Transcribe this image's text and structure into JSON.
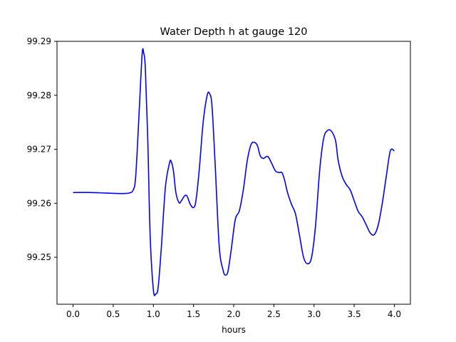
{
  "chart_data": {
    "type": "line",
    "title": "Water Depth h at gauge 120",
    "xlabel": "hours",
    "ylabel": "",
    "xlim": [
      -0.2,
      4.2
    ],
    "ylim": [
      99.2413,
      99.29
    ],
    "xticks": [
      0.0,
      0.5,
      1.0,
      1.5,
      2.0,
      2.5,
      3.0,
      3.5,
      4.0
    ],
    "xtick_labels": [
      "0.0",
      "0.5",
      "1.0",
      "1.5",
      "2.0",
      "2.5",
      "3.0",
      "3.5",
      "4.0"
    ],
    "yticks": [
      99.25,
      99.26,
      99.27,
      99.28,
      99.29
    ],
    "ytick_labels": [
      "99.25",
      "99.26",
      "99.27",
      "99.28",
      "99.29"
    ],
    "grid": false,
    "legend": "none",
    "line_color": "#0000ff",
    "series": [
      {
        "x": [
          0.0,
          0.2,
          0.4,
          0.6,
          0.7,
          0.75,
          0.78,
          0.82,
          0.86,
          0.88,
          0.9,
          0.93,
          0.96,
          1.0,
          1.03,
          1.06,
          1.1,
          1.15,
          1.2,
          1.22,
          1.25,
          1.28,
          1.32,
          1.35,
          1.39,
          1.42,
          1.46,
          1.5,
          1.53,
          1.57,
          1.62,
          1.67,
          1.7,
          1.73,
          1.77,
          1.82,
          1.87,
          1.9,
          1.93,
          1.97,
          2.02,
          2.07,
          2.12,
          2.17,
          2.22,
          2.27,
          2.3,
          2.33,
          2.37,
          2.4,
          2.43,
          2.47,
          2.52,
          2.57,
          2.6,
          2.63,
          2.67,
          2.72,
          2.77,
          2.82,
          2.87,
          2.92,
          2.97,
          3.02,
          3.07,
          3.12,
          3.17,
          3.22,
          3.27,
          3.3,
          3.35,
          3.4,
          3.45,
          3.5,
          3.55,
          3.6,
          3.65,
          3.7,
          3.75,
          3.8,
          3.85,
          3.9,
          3.95,
          4.0
        ],
        "y": [
          99.262,
          99.262,
          99.2619,
          99.2618,
          99.2619,
          99.2625,
          99.265,
          99.276,
          99.2876,
          99.2878,
          99.285,
          99.272,
          99.254,
          99.244,
          99.2432,
          99.2445,
          99.252,
          99.263,
          99.2674,
          99.2678,
          99.266,
          99.262,
          99.2601,
          99.2605,
          99.2614,
          99.2613,
          99.2598,
          99.2592,
          99.2605,
          99.266,
          99.275,
          99.28,
          99.2803,
          99.278,
          99.267,
          99.252,
          99.2475,
          99.2467,
          99.2475,
          99.2515,
          99.257,
          99.2586,
          99.2625,
          99.268,
          99.271,
          99.2712,
          99.2705,
          99.2688,
          99.2683,
          99.2686,
          99.2686,
          99.2675,
          99.266,
          99.2657,
          99.2657,
          99.2645,
          99.262,
          99.2598,
          99.258,
          99.254,
          99.25,
          99.2488,
          99.25,
          99.256,
          99.266,
          99.272,
          99.2735,
          99.2733,
          99.2715,
          99.268,
          99.265,
          99.2635,
          99.2625,
          99.2605,
          99.2585,
          99.2575,
          99.256,
          99.2545,
          99.2542,
          99.256,
          99.26,
          99.265,
          99.2697,
          99.2697
        ]
      }
    ]
  }
}
